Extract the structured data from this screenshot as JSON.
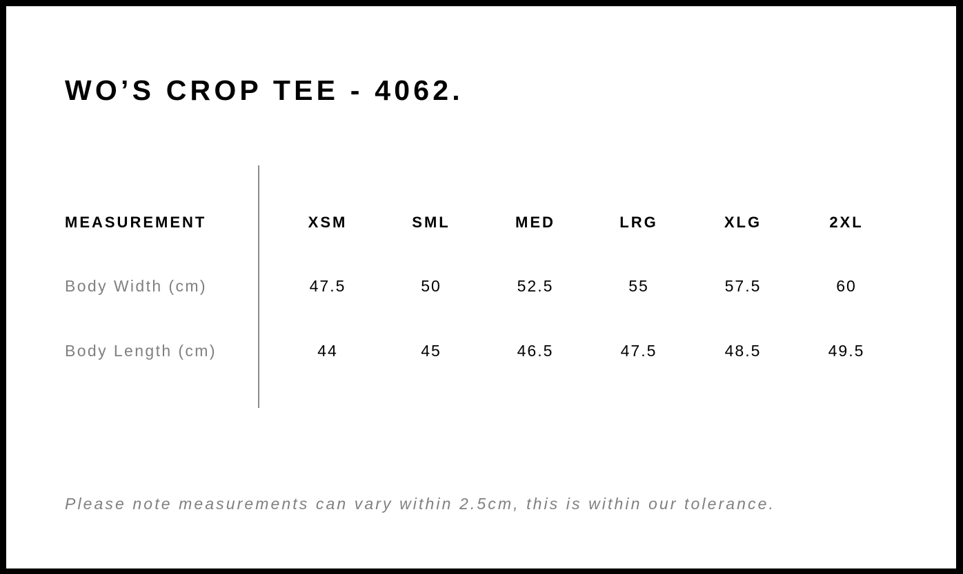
{
  "title": "WO’S CROP TEE - 4062.",
  "table": {
    "header_label": "MEASUREMENT",
    "sizes": [
      "XSM",
      "SML",
      "MED",
      "LRG",
      "XLG",
      "2XL"
    ],
    "rows": [
      {
        "label": "Body Width (cm)",
        "values": [
          "47.5",
          "50",
          "52.5",
          "55",
          "57.5",
          "60"
        ]
      },
      {
        "label": "Body Length (cm)",
        "values": [
          "44",
          "45",
          "46.5",
          "47.5",
          "48.5",
          "49.5"
        ]
      }
    ]
  },
  "note": "Please note measurements can vary within 2.5cm, this is within our tolerance."
}
